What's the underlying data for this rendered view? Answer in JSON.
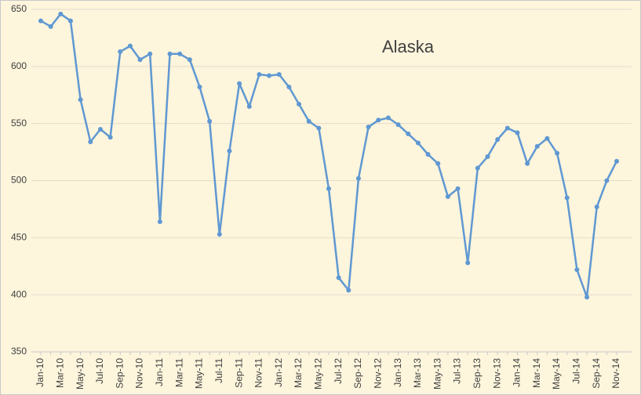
{
  "chart_data": {
    "type": "line",
    "title": "Alaska",
    "categories": [
      "Jan-10",
      null,
      "Mar-10",
      null,
      "May-10",
      null,
      "Jul-10",
      null,
      "Sep-10",
      null,
      "Nov-10",
      null,
      "Jan-11",
      null,
      "Mar-11",
      null,
      "May-11",
      null,
      "Jul-11",
      null,
      "Sep-11",
      null,
      "Nov-11",
      null,
      "Jan-12",
      null,
      "Mar-12",
      null,
      "May-12",
      null,
      "Jul-12",
      null,
      "Sep-12",
      null,
      "Nov-12",
      null,
      "Jan-13",
      null,
      "Mar-13",
      null,
      "May-13",
      null,
      "Jul-13",
      null,
      "Sep-13",
      null,
      "Nov-13",
      null,
      "Jan-14",
      null,
      "Mar-14",
      null,
      "May-14",
      null,
      "Jul-14",
      null,
      "Sep-14",
      null,
      "Nov-14"
    ],
    "values": [
      640,
      635,
      646,
      640,
      571,
      534,
      545,
      538,
      613,
      618,
      606,
      611,
      464,
      611,
      611,
      606,
      582,
      552,
      453,
      526,
      585,
      565,
      593,
      592,
      593,
      582,
      567,
      552,
      546,
      493,
      415,
      404,
      502,
      547,
      553,
      555,
      549,
      541,
      533,
      523,
      515,
      486,
      493,
      428,
      511,
      521,
      536,
      546,
      542,
      515,
      530,
      537,
      524,
      485,
      422,
      398,
      477,
      500,
      517
    ],
    "color": "#5f98d2",
    "ylim": [
      350,
      650
    ],
    "yticks": [
      350,
      400,
      450,
      500,
      550,
      600,
      650
    ],
    "grid": true
  }
}
